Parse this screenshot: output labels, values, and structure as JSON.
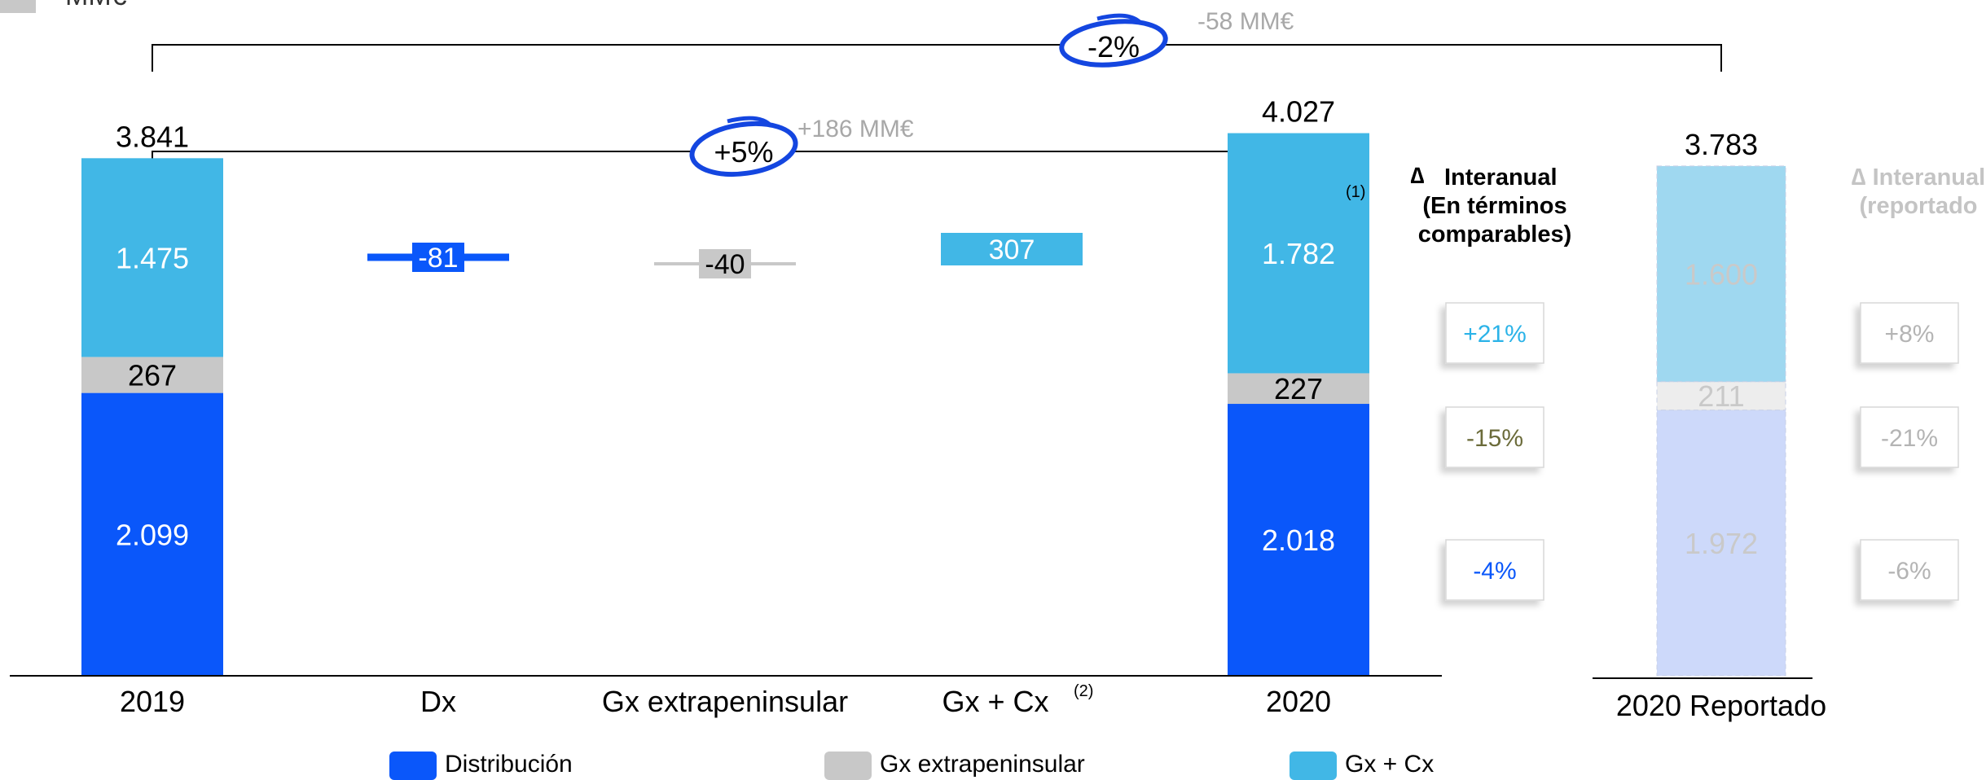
{
  "header": {
    "unit_label": "MM€"
  },
  "colors": {
    "distribucion": "#0a57fa",
    "gx_extrapeninsular": "#c8c8c8",
    "gx_cx": "#41b7e6",
    "reported_distribucion": "#cdd9fa",
    "reported_gx_extrapeninsular": "#ededed",
    "reported_gx_cx": "#9fd8f0",
    "positive_text": "#2bb3e8",
    "negative_text_olive": "#6b6b3a",
    "negative_text_blue": "#0a57fa",
    "faded_text": "#b4b4b4",
    "circle": "#1446e0"
  },
  "chart_data": {
    "type": "bar",
    "subtype": "stacked-waterfall",
    "categories": [
      "2019",
      "Dx",
      "Gx extrapeninsular",
      "Gx + Cx",
      "2020",
      "2020 Reportado"
    ],
    "category_footnotes": {
      "Gx + Cx": "(2)",
      "2020": "(1)"
    },
    "legend": [
      "Distribución",
      "Gx extrapeninsular",
      "Gx + Cx"
    ],
    "legend_placement": "bottom",
    "totals": [
      {
        "category": "2019",
        "distribucion": 2099,
        "gx_extrapeninsular": 267,
        "gx_cx": 1475,
        "total": 3841,
        "labels": {
          "distribucion": "2.099",
          "gx_extrapeninsular": "267",
          "gx_cx": "1.475",
          "total": "3.841"
        }
      },
      {
        "category": "2020",
        "distribucion": 2018,
        "gx_extrapeninsular": 227,
        "gx_cx": 1782,
        "total": 4027,
        "labels": {
          "distribucion": "2.018",
          "gx_extrapeninsular": "227",
          "gx_cx": "1.782",
          "total": "4.027"
        }
      },
      {
        "category": "2020 Reportado",
        "distribucion": 1972,
        "gx_extrapeninsular": 211,
        "gx_cx": 1600,
        "total": 3783,
        "labels": {
          "distribucion": "1.972",
          "gx_extrapeninsular": "211",
          "gx_cx": "1.600",
          "total": "3.783"
        }
      }
    ],
    "deltas": [
      {
        "category": "Dx",
        "segment": "distribucion",
        "value": -81,
        "label": "-81"
      },
      {
        "category": "Gx extrapeninsular",
        "segment": "gx_extrapeninsular",
        "value": -40,
        "label": "-40"
      },
      {
        "category": "Gx + Cx",
        "segment": "gx_cx",
        "value": 307,
        "label": "307"
      }
    ],
    "brackets": [
      {
        "from": "2019",
        "to": "2020 Reportado",
        "pct": "-2%",
        "abs": "-58 MM€"
      },
      {
        "from": "2019",
        "to": "2020",
        "pct": "+5%",
        "abs": "+186 MM€"
      }
    ],
    "yoy_comparable": {
      "title_delta": "∆",
      "title_word": "Interanual",
      "subtitle_1": "(En términos",
      "subtitle_2": "comparables)",
      "values": {
        "gx_cx": "+21%",
        "gx_extrapeninsular": "-15%",
        "distribucion": "-4%"
      }
    },
    "yoy_reported": {
      "title": "∆ Interanual",
      "subtitle": "(reportado",
      "values": {
        "gx_cx": "+8%",
        "gx_extrapeninsular": "-21%",
        "distribucion": "-6%"
      }
    }
  }
}
